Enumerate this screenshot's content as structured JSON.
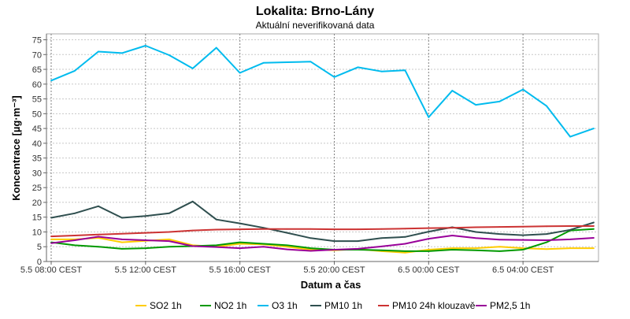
{
  "chart_data": {
    "type": "line",
    "title": "Lokalita: Brno-Lány",
    "subtitle": "Aktuální neverifikovaná data",
    "xlabel": "Datum a čas",
    "ylabel": "Koncentrace [µg·m⁻³]",
    "ylim": [
      0,
      77
    ],
    "xlim": [
      -0.2,
      23.2
    ],
    "grid": true,
    "legend_position": "bottom",
    "y_ticks": [
      0,
      5,
      10,
      15,
      20,
      25,
      30,
      35,
      40,
      45,
      50,
      55,
      60,
      65,
      70,
      75
    ],
    "x_ticks": [
      {
        "x": 0,
        "label": "5.5 08:00 CEST"
      },
      {
        "x": 4,
        "label": "5.5 12:00 CEST"
      },
      {
        "x": 8,
        "label": "5.5 16:00 CEST"
      },
      {
        "x": 12,
        "label": "5.5 20:00 CEST"
      },
      {
        "x": 16,
        "label": "6.5 00:00 CEST"
      },
      {
        "x": 20,
        "label": "6.5 04:00 CEST"
      }
    ],
    "x": [
      0,
      1,
      2,
      3,
      4,
      5,
      6,
      7,
      8,
      9,
      10,
      11,
      12,
      13,
      14,
      15,
      16,
      17,
      18,
      19,
      20,
      21,
      22,
      23
    ],
    "series": [
      {
        "name": "SO2 1h",
        "color": "#ffcc00",
        "values": [
          7.5,
          7.5,
          8.0,
          6.5,
          7.0,
          7.5,
          5.5,
          5.0,
          6.0,
          5.8,
          5.0,
          4.0,
          3.8,
          4.2,
          3.5,
          3.0,
          4.0,
          4.5,
          4.5,
          5.0,
          4.5,
          4.2,
          4.5,
          4.5
        ]
      },
      {
        "name": "NO2 1h",
        "color": "#009900",
        "values": [
          6.5,
          5.5,
          5.0,
          4.3,
          4.5,
          5.0,
          5.2,
          5.5,
          6.5,
          6.0,
          5.5,
          4.5,
          4.0,
          4.0,
          3.8,
          3.5,
          3.5,
          4.0,
          3.8,
          3.5,
          4.0,
          6.5,
          10.5,
          11.0
        ]
      },
      {
        "name": "O3 1h",
        "color": "#00bbee",
        "values": [
          61.2,
          64.5,
          71.0,
          70.5,
          73.0,
          69.8,
          65.3,
          72.3,
          63.8,
          67.2,
          67.4,
          67.6,
          62.4,
          65.7,
          64.3,
          64.7,
          48.8,
          57.8,
          53.0,
          54.1,
          58.2,
          52.6,
          42.2,
          45.0
        ]
      },
      {
        "name": "PM10 1h",
        "color": "#2f4f4f",
        "values": [
          14.8,
          16.3,
          18.7,
          14.8,
          15.4,
          16.3,
          20.3,
          14.2,
          12.9,
          11.4,
          9.7,
          7.9,
          6.9,
          6.9,
          7.9,
          8.3,
          10.1,
          11.6,
          10.0,
          9.3,
          8.9,
          9.3,
          10.7,
          13.2
        ]
      },
      {
        "name": "PM10 24h klouzavě",
        "color": "#cc3333",
        "values": [
          8.5,
          8.8,
          9.1,
          9.4,
          9.7,
          10.0,
          10.5,
          10.8,
          10.9,
          11.0,
          11.0,
          11.0,
          10.9,
          10.9,
          11.0,
          11.1,
          11.3,
          11.4,
          11.6,
          11.7,
          11.8,
          11.9,
          12.0,
          12.0
        ]
      },
      {
        "name": "PM2,5 1h",
        "color": "#990099",
        "values": [
          6.2,
          7.2,
          8.4,
          7.5,
          7.2,
          6.9,
          5.2,
          4.9,
          4.5,
          5.0,
          4.1,
          3.6,
          4.0,
          4.3,
          5.1,
          6.0,
          7.7,
          8.8,
          7.9,
          7.4,
          7.3,
          7.2,
          7.5,
          8.0
        ]
      }
    ]
  }
}
